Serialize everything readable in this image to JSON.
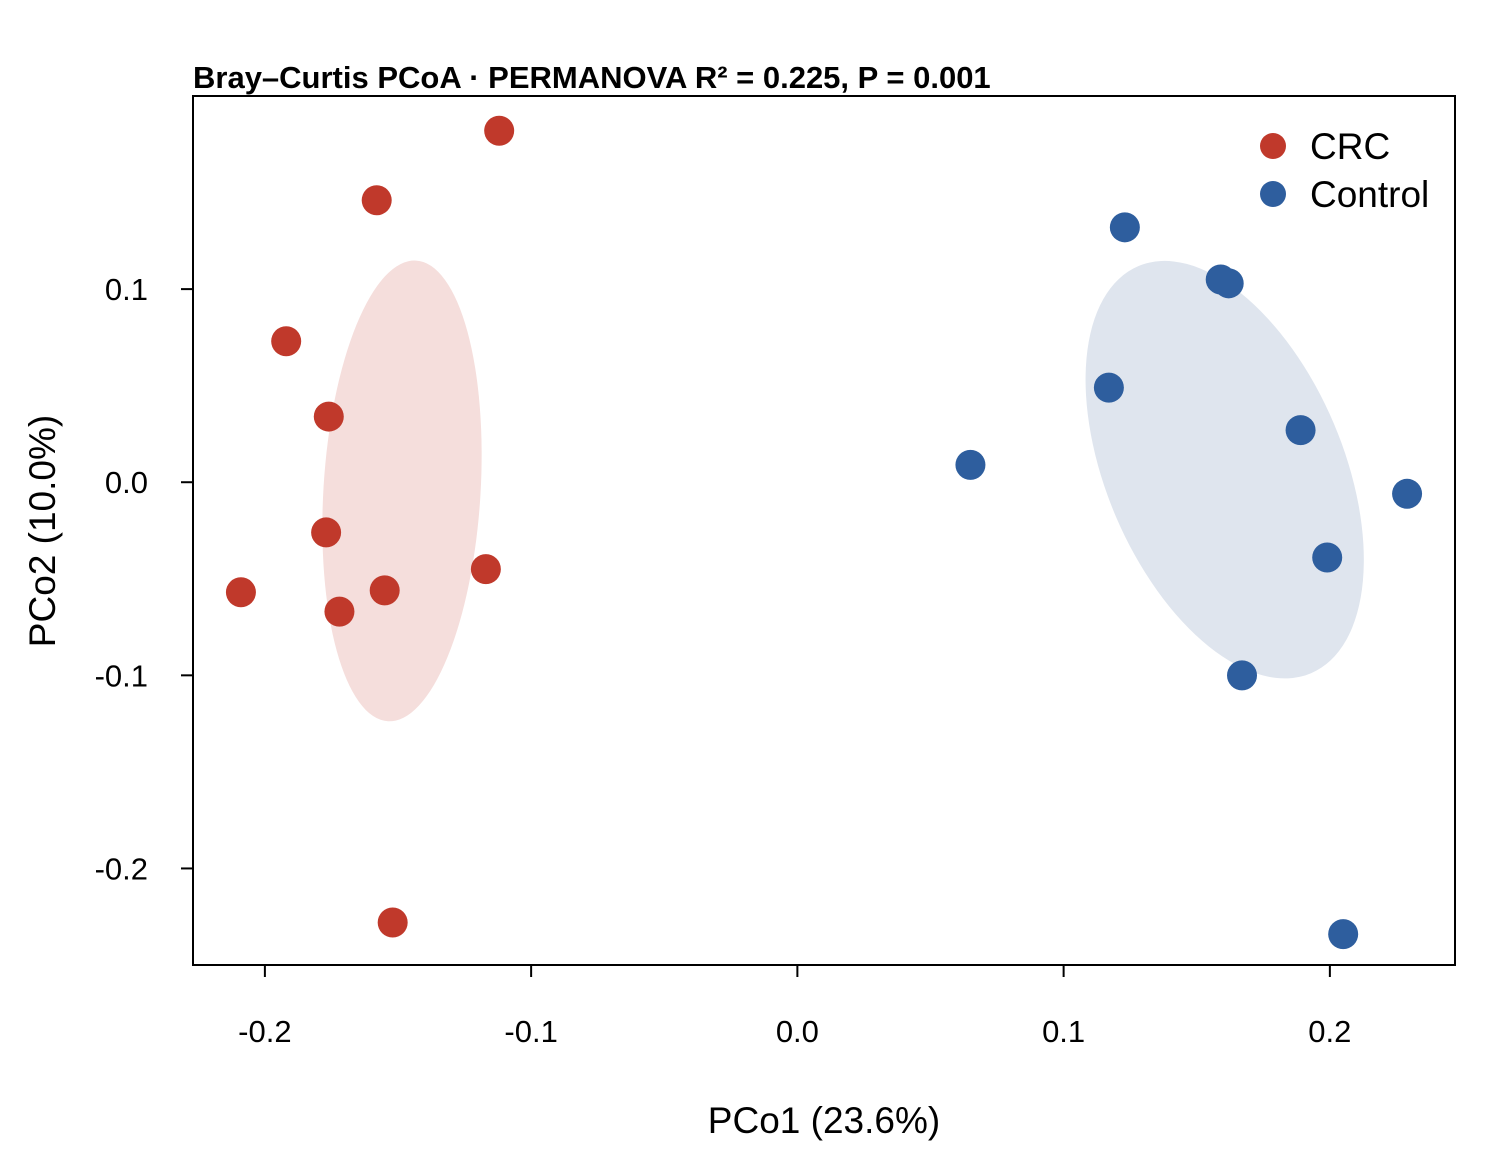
{
  "chart_data": {
    "type": "scatter",
    "title": "Bray–Curtis PCoA · PERMANOVA R² = 0.225, P = 0.001",
    "xlabel": "PCo1 (23.6%)",
    "ylabel": "PCo2 (10.0%)",
    "xlim": [
      -0.227,
      0.247
    ],
    "ylim": [
      -0.25,
      0.2
    ],
    "xticks": [
      -0.2,
      -0.1,
      0.0,
      0.1,
      0.2
    ],
    "xtick_labels": [
      "-0.2",
      "-0.1",
      "0.0",
      "0.1",
      "0.2"
    ],
    "yticks": [
      -0.2,
      -0.1,
      0.0,
      0.1
    ],
    "ytick_labels": [
      "-0.2",
      "-0.1",
      "0.0",
      "0.1"
    ],
    "grid": false,
    "legend_position": "top-right",
    "series": [
      {
        "name": "CRC",
        "color": "#c0392b",
        "ellipse_color": "#f5dedc",
        "ellipse": {
          "cx": -0.1485,
          "cy": -0.0045,
          "rx": 0.0295,
          "ry": 0.1195,
          "angle_deg": 3.5
        },
        "x": [
          -0.112,
          -0.158,
          -0.192,
          -0.176,
          -0.177,
          -0.209,
          -0.155,
          -0.172,
          -0.117,
          -0.152
        ],
        "y": [
          0.182,
          0.146,
          0.073,
          0.034,
          -0.026,
          -0.057,
          -0.056,
          -0.067,
          -0.045,
          -0.228
        ]
      },
      {
        "name": "Control",
        "color": "#2e5e9e",
        "ellipse_color": "#dfe5ee",
        "ellipse": {
          "cx": 0.1605,
          "cy": 0.0065,
          "rx": 0.0445,
          "ry": 0.1145,
          "angle_deg": -23
        },
        "x": [
          0.123,
          0.159,
          0.162,
          0.117,
          0.065,
          0.189,
          0.229,
          0.199,
          0.167,
          0.205
        ],
        "y": [
          0.132,
          0.105,
          0.103,
          0.049,
          0.009,
          0.027,
          -0.006,
          -0.039,
          -0.1,
          -0.234
        ]
      }
    ]
  }
}
